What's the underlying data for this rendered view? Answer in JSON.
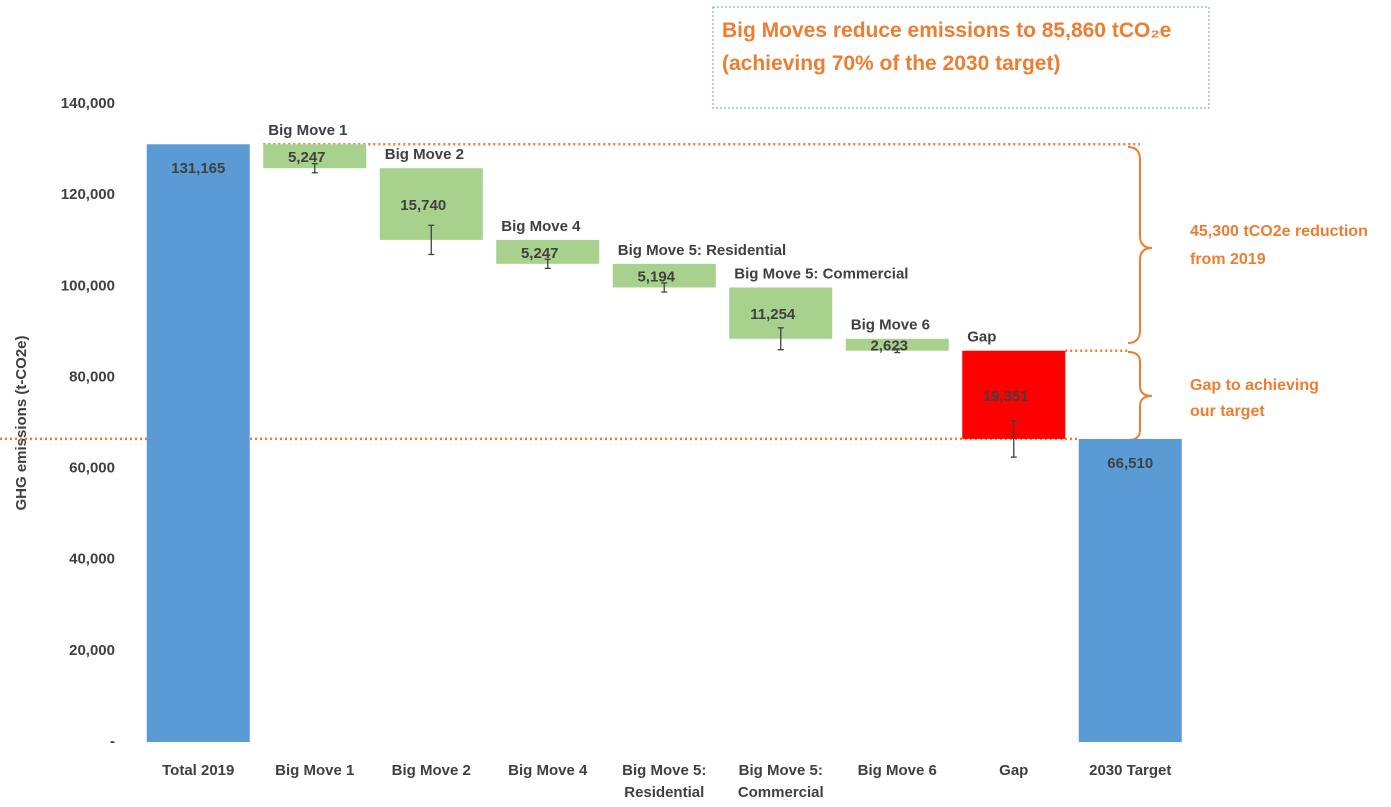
{
  "chart_data": {
    "type": "waterfall",
    "title": "Big Moves reduce emissions to 85,860 tCO₂e (achieving 70% of the 2030 target)",
    "y_label": "GHG emissions (t-CO2e)",
    "annotations": [
      "45,300 tCO2e reduction from 2019",
      "Gap to achieving our target"
    ],
    "categories": [
      "Total 2019",
      "Big Move 1",
      "Big Move 2",
      "Big Move 4",
      "Big Move 5: Residential",
      "Big Move 5: Commercial",
      "Big Move 6",
      "Gap",
      "2030 Target"
    ],
    "measure": [
      "total",
      "decrease",
      "decrease",
      "decrease",
      "decrease",
      "decrease",
      "decrease",
      "decrease",
      "total"
    ],
    "values": [
      131165,
      5247,
      15740,
      5247,
      5194,
      11254,
      2623,
      19351,
      66510
    ],
    "value_labels": [
      "131,165",
      "5,247",
      "15,740",
      "5,247",
      "5,194",
      "11,254",
      "2,623",
      "19,351",
      "66,510"
    ],
    "errors": [
      null,
      1000,
      3200,
      1000,
      1000,
      2400,
      400,
      4000,
      null
    ],
    "colors": [
      "#5b9bd5",
      "#a9d18e",
      "#a9d18e",
      "#a9d18e",
      "#a9d18e",
      "#a9d18e",
      "#a9d18e",
      "#ff0000",
      "#5b9bd5"
    ],
    "ylim": [
      0,
      140000
    ],
    "yticks": [
      {
        "value": 0,
        "label": "-"
      },
      {
        "value": 20000,
        "label": "20,000"
      },
      {
        "value": 40000,
        "label": "40,000"
      },
      {
        "value": 60000,
        "label": "60,000"
      },
      {
        "value": 80000,
        "label": "80,000"
      },
      {
        "value": 100000,
        "label": "100,000"
      },
      {
        "value": 120000,
        "label": "120,000"
      },
      {
        "value": 140000,
        "label": "140,000"
      }
    ],
    "grid": false
  }
}
